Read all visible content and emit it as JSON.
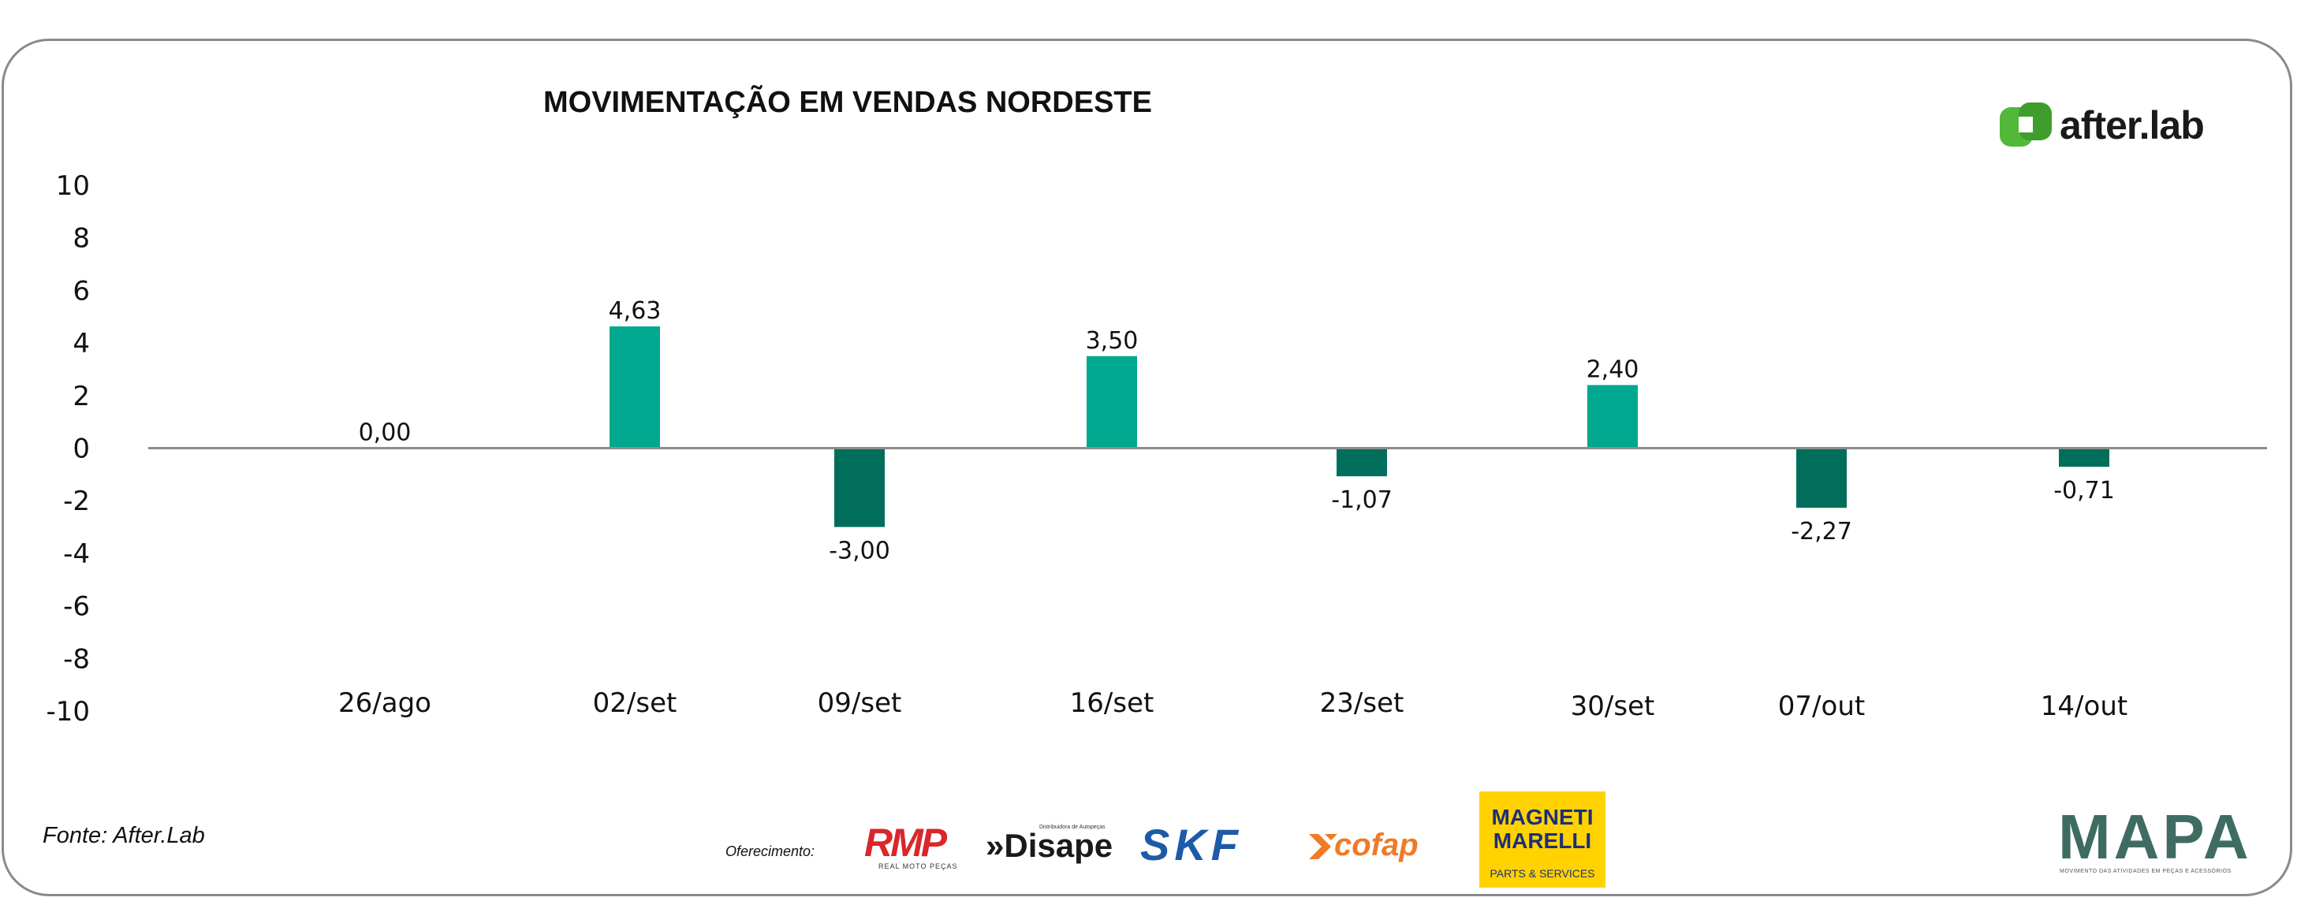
{
  "chart_data": {
    "type": "bar",
    "title": "MOVIMENTAÇÃO EM VENDAS NORDESTE",
    "categories": [
      "26/ago",
      "02/set",
      "09/set",
      "16/set",
      "23/set",
      "30/set",
      "07/out",
      "14/out"
    ],
    "values": [
      0.0,
      4.63,
      -3.0,
      3.5,
      -1.07,
      2.4,
      -2.27,
      -0.71
    ],
    "data_labels": [
      "0,00",
      "4,63",
      "-3,00",
      "3,50",
      "-1,07",
      "2,40",
      "-2,27",
      "-0,71"
    ],
    "ylim": [
      -10,
      10
    ],
    "yticks": [
      10,
      8,
      6,
      4,
      2,
      0,
      -2,
      -4,
      -6,
      -8,
      -10
    ],
    "xlabel": "",
    "ylabel": "",
    "grid": false,
    "legend": "none",
    "colors": {
      "positive": "#00a88f",
      "negative": "#006e5a",
      "axis": "#8c8c8c"
    }
  },
  "brand": {
    "name": "after.lab",
    "icon": "after-lab-logo-icon",
    "color": "#52b83a"
  },
  "footer": {
    "source": "Fonte: After.Lab",
    "offer_label": "Oferecimento:",
    "sponsors": {
      "rmp": "RMP",
      "rmp_sub": "REAL MOTO PEÇAS",
      "disape": "Disape",
      "disape_sub": "Distribuidora de Autopeças",
      "skf": "SKF",
      "cofap": "cofap",
      "magneti_1": "MAGNETI",
      "magneti_2": "MARELLI",
      "magneti_sub": "PARTS & SERVICES"
    },
    "mapa": {
      "name": "MAPA",
      "tagline": "MOVIMENTO DAS ATIVIDADES EM PEÇAS E ACESSÓRIOS"
    }
  }
}
